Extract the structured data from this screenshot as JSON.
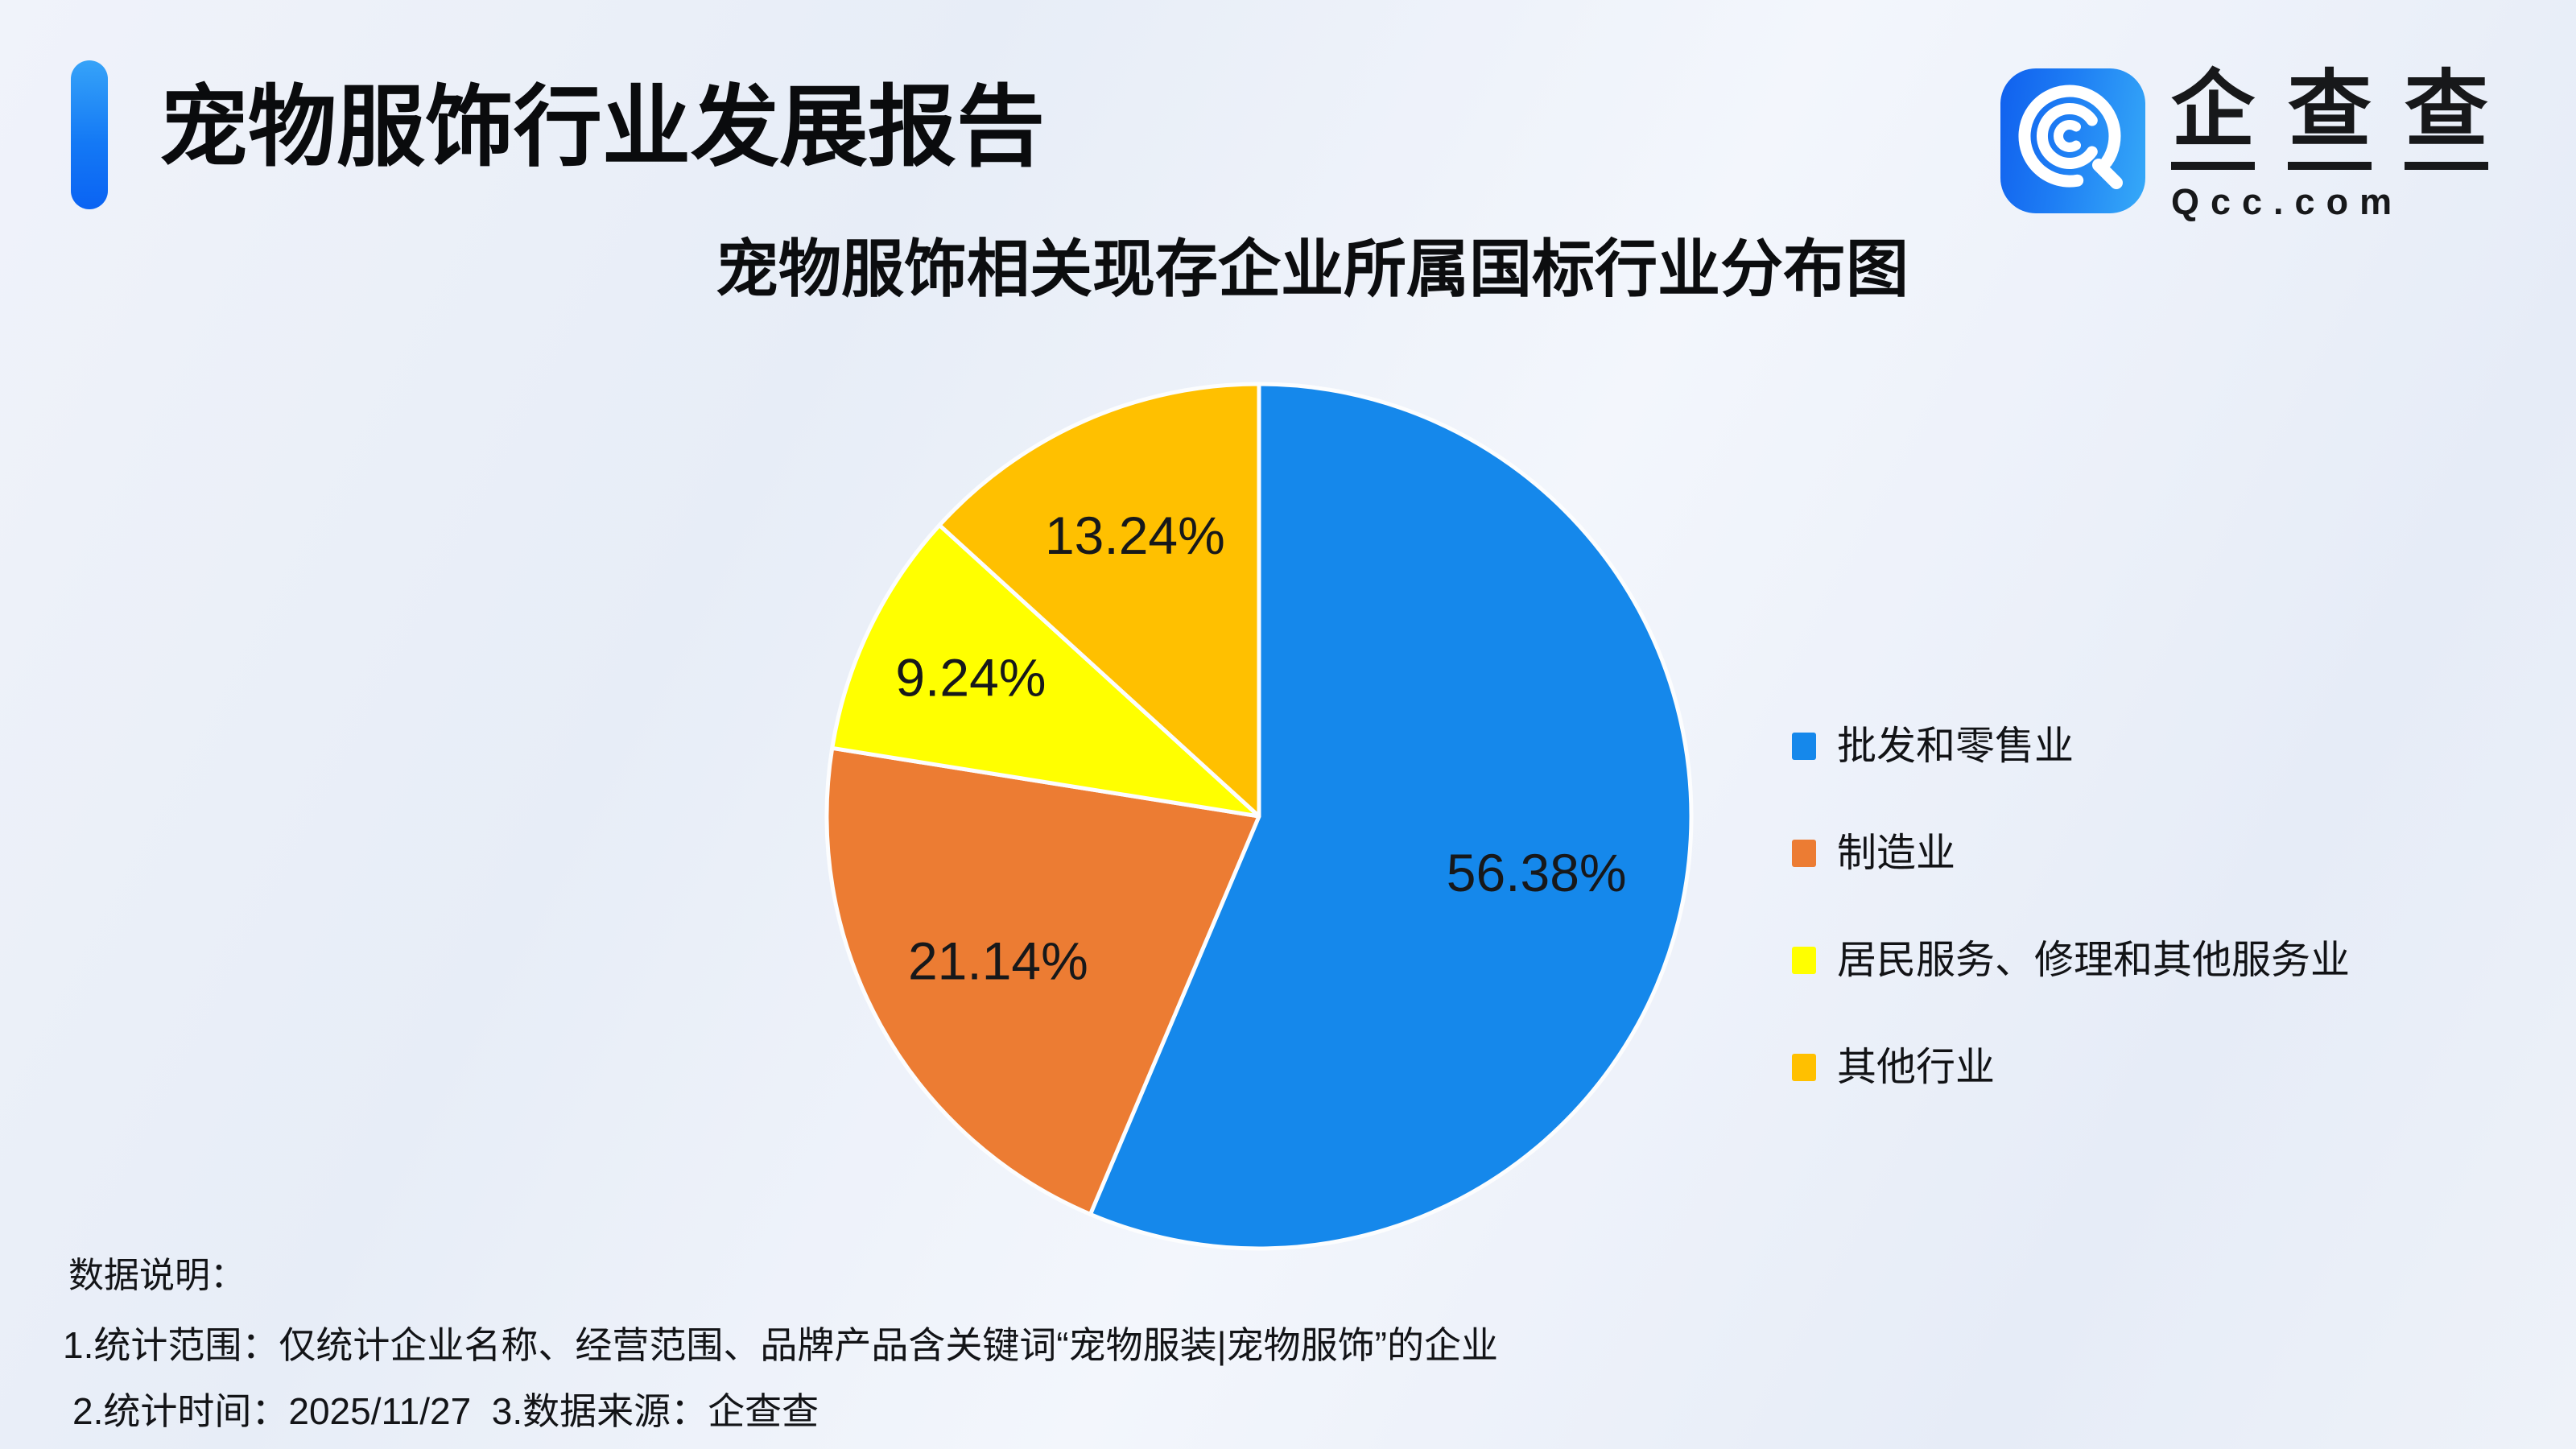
{
  "header": {
    "title": "宠物服饰行业发展报告",
    "logo": {
      "chars": [
        "企",
        "查",
        "查"
      ],
      "domain": "Qcc.com"
    }
  },
  "chart_data": {
    "type": "pie",
    "title": "宠物服饰相关现存企业所属国标行业分布图",
    "labels": [
      "批发和零售业",
      "制造业",
      "居民服务、修理和其他服务业",
      "其他行业"
    ],
    "values": [
      56.38,
      21.14,
      9.24,
      13.24
    ],
    "value_unit": "%",
    "slice_labels": [
      "56.38%",
      "21.14%",
      "9.24%",
      "13.24%"
    ],
    "colors": [
      "#1588EB",
      "#EC7C33",
      "#FFFF00",
      "#FFC000"
    ],
    "start_angle": "top",
    "direction": "clockwise",
    "legend_position": "right",
    "slice_border_color": "#FCFDFE"
  },
  "notes": {
    "heading": "数据说明：",
    "line1": "1.统计范围：仅统计企业名称、经营范围、品牌产品含关键词“宠物服装|宠物服饰”的企业",
    "line2": "2.统计时间：2025/11/27  3.数据来源：企查查"
  },
  "accent": {
    "bar_top": "#36A3F8",
    "bar_bottom": "#0A63F3",
    "logo_left": "#1060EE",
    "logo_right": "#36AAF8"
  }
}
